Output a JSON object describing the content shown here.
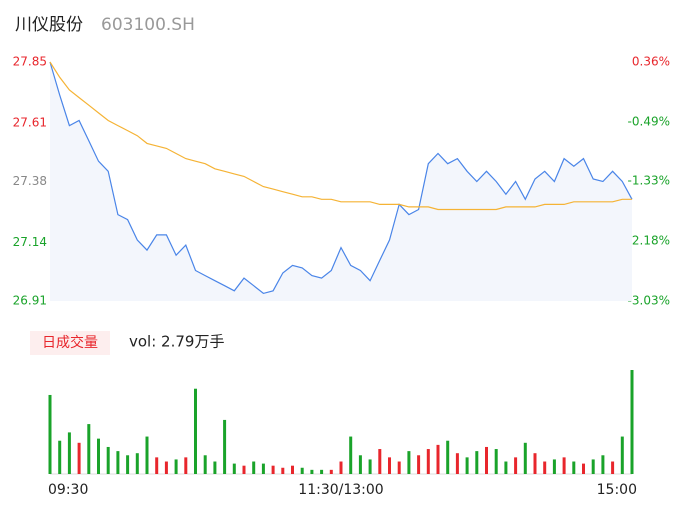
{
  "chart_data": [
    {
      "type": "line",
      "title": "川仪股份",
      "subtitle": "603100.SH",
      "x": [
        0,
        4,
        8,
        12,
        16,
        20,
        24,
        28,
        32,
        36,
        40,
        44,
        48,
        52,
        56,
        60,
        64,
        68,
        72,
        76,
        80,
        84,
        88,
        92,
        96,
        100,
        104,
        108,
        112,
        116,
        120,
        124,
        128,
        132,
        136,
        140,
        144,
        148,
        152,
        156,
        160,
        164,
        168,
        172,
        176,
        180,
        184,
        188,
        192,
        196,
        200,
        204,
        208,
        212,
        216,
        220,
        224,
        228,
        232,
        236,
        240
      ],
      "xlim": [
        0,
        240
      ],
      "xticks": [
        {
          "value": 0,
          "label": "09:30"
        },
        {
          "value": 120,
          "label": "11:30/13:00"
        },
        {
          "value": 240,
          "label": "15:00"
        }
      ],
      "ylim": [
        26.91,
        27.85
      ],
      "yticks": [
        26.91,
        27.14,
        27.38,
        27.61,
        27.85
      ],
      "y2lim": [
        -3.03,
        0.36
      ],
      "y2ticks": [
        {
          "value": -3.03,
          "label": "-3.03%"
        },
        {
          "value": -2.18,
          "label": "-2.18%"
        },
        {
          "value": -1.33,
          "label": "-1.33%"
        },
        {
          "value": -0.49,
          "label": "-0.49%"
        },
        {
          "value": 0.36,
          "label": "0.36%"
        }
      ],
      "up_color": "#e8262c",
      "down_color": "#1aa32a",
      "flat_color": "#888888",
      "series": [
        {
          "name": "price",
          "color": "#4a85e8",
          "fill": "#f3f6fc",
          "values": [
            27.85,
            27.72,
            27.6,
            27.62,
            27.54,
            27.46,
            27.42,
            27.25,
            27.23,
            27.15,
            27.11,
            27.17,
            27.17,
            27.09,
            27.13,
            27.03,
            27.01,
            26.99,
            26.97,
            26.95,
            27.0,
            26.97,
            26.94,
            26.95,
            27.02,
            27.05,
            27.04,
            27.01,
            27.0,
            27.03,
            27.12,
            27.05,
            27.03,
            26.99,
            27.07,
            27.15,
            27.29,
            27.25,
            27.27,
            27.45,
            27.49,
            27.45,
            27.47,
            27.42,
            27.38,
            27.42,
            27.38,
            27.33,
            27.38,
            27.31,
            27.39,
            27.42,
            27.38,
            27.47,
            27.44,
            27.47,
            27.39,
            27.38,
            27.42,
            27.38,
            27.31
          ]
        },
        {
          "name": "average",
          "color": "#f5b335",
          "values": [
            27.85,
            27.79,
            27.74,
            27.71,
            27.68,
            27.65,
            27.62,
            27.6,
            27.58,
            27.56,
            27.53,
            27.52,
            27.51,
            27.49,
            27.47,
            27.46,
            27.45,
            27.43,
            27.42,
            27.41,
            27.4,
            27.38,
            27.36,
            27.35,
            27.34,
            27.33,
            27.32,
            27.32,
            27.31,
            27.31,
            27.3,
            27.3,
            27.3,
            27.3,
            27.29,
            27.29,
            27.29,
            27.28,
            27.28,
            27.28,
            27.27,
            27.27,
            27.27,
            27.27,
            27.27,
            27.27,
            27.27,
            27.28,
            27.28,
            27.28,
            27.28,
            27.29,
            27.29,
            27.29,
            27.3,
            27.3,
            27.3,
            27.3,
            27.3,
            27.31,
            27.31
          ]
        }
      ]
    },
    {
      "type": "bar",
      "title": "日成交量",
      "subtitle": "vol: 2.79万手",
      "ylim": [
        0,
        500
      ],
      "up_color": "#e8262c",
      "down_color": "#1aa32a",
      "values": [
        380,
        160,
        200,
        150,
        240,
        170,
        130,
        110,
        90,
        100,
        180,
        80,
        60,
        70,
        80,
        410,
        90,
        60,
        260,
        50,
        40,
        60,
        50,
        40,
        30,
        40,
        30,
        20,
        20,
        20,
        60,
        180,
        90,
        70,
        120,
        80,
        60,
        110,
        90,
        120,
        140,
        160,
        100,
        80,
        110,
        130,
        120,
        60,
        80,
        150,
        100,
        60,
        70,
        80,
        60,
        50,
        70,
        90,
        60,
        180,
        500
      ]
    }
  ]
}
